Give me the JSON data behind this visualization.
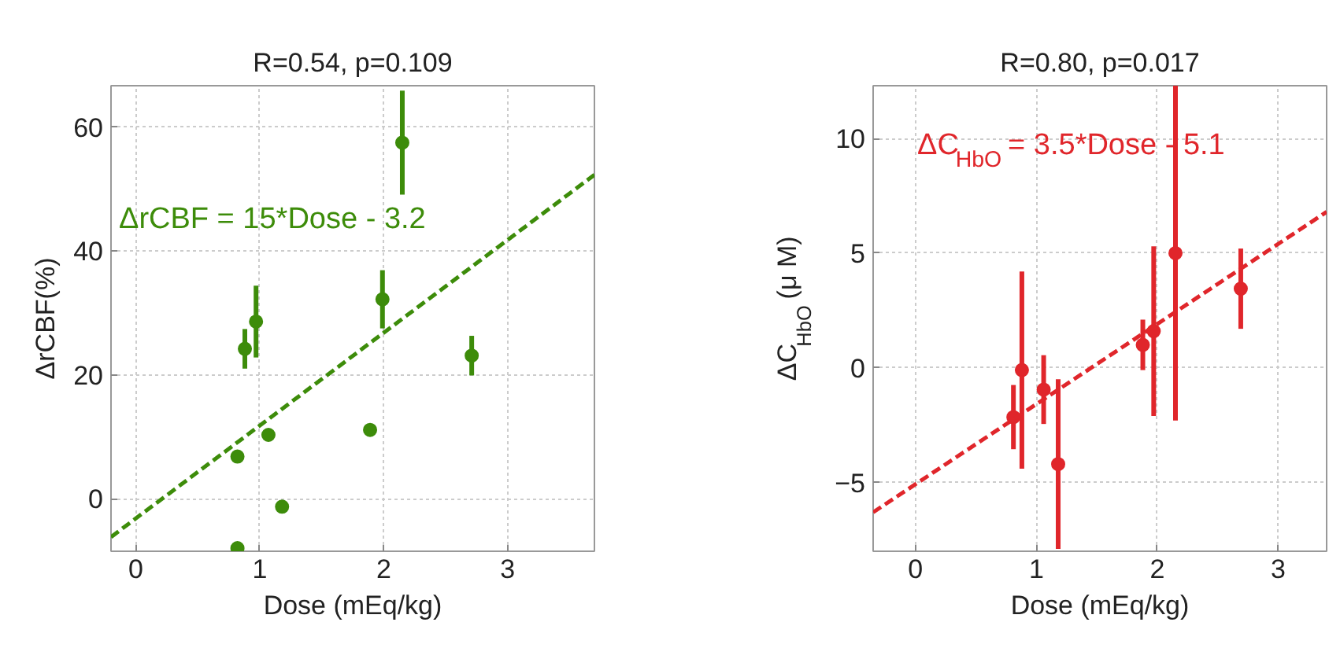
{
  "chart_data": [
    {
      "type": "scatter",
      "title": "R=0.54, p=0.109",
      "xlabel": "Dose (mEq/kg)",
      "ylabel": "ΔrCBF(%)",
      "xlim": [
        -0.2,
        3.7
      ],
      "ylim": [
        -8.5,
        66.7
      ],
      "xticks": [
        0,
        1,
        2,
        3
      ],
      "yticks": [
        0,
        20,
        40,
        60
      ],
      "grid": true,
      "marker": "circle",
      "annotations": [
        "ΔrCBF = 15*Dose - 3.2"
      ],
      "series": [
        {
          "color": "#3d8c0a",
          "x": [
            0.82,
            0.82,
            0.88,
            0.97,
            1.07,
            1.18,
            1.89,
            1.99,
            2.15,
            2.71
          ],
          "values": [
            6.8,
            -8,
            24.2,
            28.6,
            10.3,
            -1.3,
            11.1,
            32.2,
            57.5,
            23.1
          ],
          "errors": [
            null,
            null,
            3.2,
            5.8,
            null,
            null,
            null,
            4.7,
            8.4,
            3.2
          ]
        },
        {
          "type": "line",
          "color": "#3d8c0a",
          "line_style": "dashed",
          "marker": "none",
          "x": [
            -0.2,
            3.7
          ],
          "values": [
            -6.2,
            52.3
          ]
        }
      ]
    },
    {
      "type": "scatter",
      "title": "R=0.80, p=0.017",
      "xlabel": "Dose (mEq/kg)",
      "ylabel": "ΔC$_{HbO}$ (μ M)",
      "xlim": [
        -0.35,
        3.4
      ],
      "ylim": [
        -8,
        12.3
      ],
      "xticks": [
        0,
        1,
        2,
        3
      ],
      "yticks": [
        -5,
        0,
        5,
        10
      ],
      "grid": true,
      "marker": "circle",
      "annotations": [
        "ΔC$_{HbO}$ = 3.5*Dose - 5.1"
      ],
      "series": [
        {
          "color": "#e0262b",
          "x": [
            0.81,
            0.88,
            1.06,
            1.18,
            1.88,
            1.97,
            2.15,
            2.69
          ],
          "values": [
            -2.15,
            -0.1,
            -0.95,
            -4.2,
            1.0,
            1.6,
            5.0,
            3.45
          ],
          "errors": [
            1.4,
            4.3,
            1.5,
            3.7,
            1.1,
            3.7,
            7.3,
            1.75
          ]
        },
        {
          "type": "line",
          "color": "#e0262b",
          "line_style": "dashed",
          "marker": "none",
          "x": [
            -0.35,
            3.4
          ],
          "values": [
            -6.3,
            6.8
          ]
        }
      ]
    }
  ]
}
